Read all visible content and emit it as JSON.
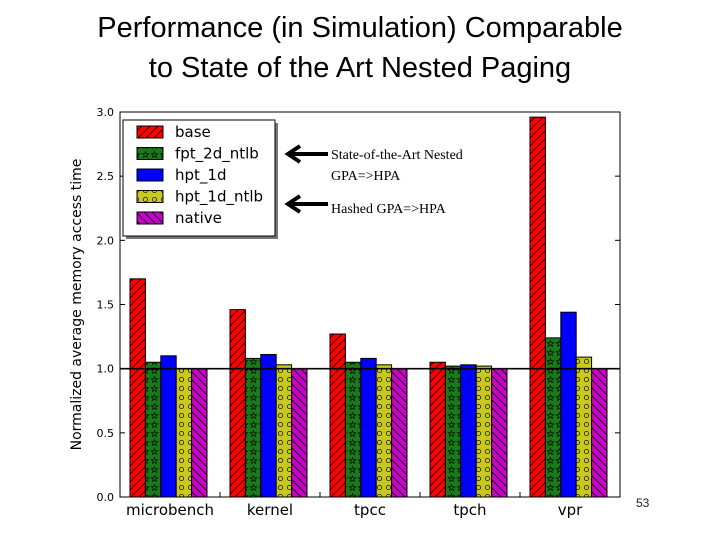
{
  "slide": {
    "title_line1": "Performance (in Simulation) Comparable",
    "title_line2": "to State of the Art Nested Paging",
    "number": "53"
  },
  "annotations": {
    "nested_line1": "State-of-the-Art Nested",
    "nested_line2": "GPA=>HPA",
    "hashed": "Hashed GPA=>HPA"
  },
  "colors": {
    "base": "#ff0000",
    "fpt_2d_ntlb": "#1a7a1a",
    "hpt_1d": "#0000ff",
    "hpt_1d_ntlb": "#c8c81e",
    "native": "#cc00cc"
  },
  "chart_data": {
    "type": "bar",
    "categories": [
      "microbench",
      "kernel",
      "tpcc",
      "tpch",
      "vpr"
    ],
    "series": [
      {
        "name": "base",
        "values": [
          1.7,
          1.46,
          1.27,
          1.05,
          2.96
        ]
      },
      {
        "name": "fpt_2d_ntlb",
        "values": [
          1.05,
          1.08,
          1.05,
          1.02,
          1.24
        ]
      },
      {
        "name": "hpt_1d",
        "values": [
          1.1,
          1.11,
          1.08,
          1.03,
          1.44
        ]
      },
      {
        "name": "hpt_1d_ntlb",
        "values": [
          1.0,
          1.03,
          1.03,
          1.02,
          1.09
        ]
      },
      {
        "name": "native",
        "values": [
          1.0,
          1.0,
          1.0,
          1.0,
          1.0
        ]
      }
    ],
    "ylabel": "Normalized average memory access time",
    "xlabel": "",
    "ylim": [
      0.0,
      3.0
    ],
    "yticks": [
      "0.0",
      "0.5",
      "1.0",
      "1.5",
      "2.0",
      "2.5",
      "3.0"
    ],
    "reference_line": 1.0,
    "legend_position": "top-left",
    "grid": false
  }
}
